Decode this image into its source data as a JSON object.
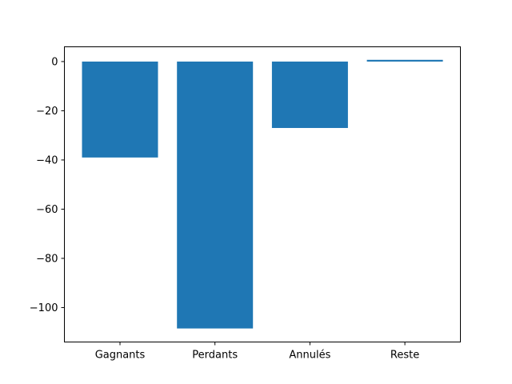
{
  "chart_data": {
    "type": "bar",
    "categories": [
      "Gagnants",
      "Perdants",
      "Annulés",
      "Reste"
    ],
    "values": [
      -39,
      -108.5,
      -27,
      0.7
    ],
    "ylim": [
      -114,
      6
    ],
    "yticks": [
      0,
      -20,
      -40,
      -60,
      -80,
      -100
    ],
    "ytick_labels": [
      "0",
      "−20",
      "−40",
      "−60",
      "−80",
      "−100"
    ],
    "grid": false,
    "colors": {
      "bar": "#1f77b4"
    }
  }
}
